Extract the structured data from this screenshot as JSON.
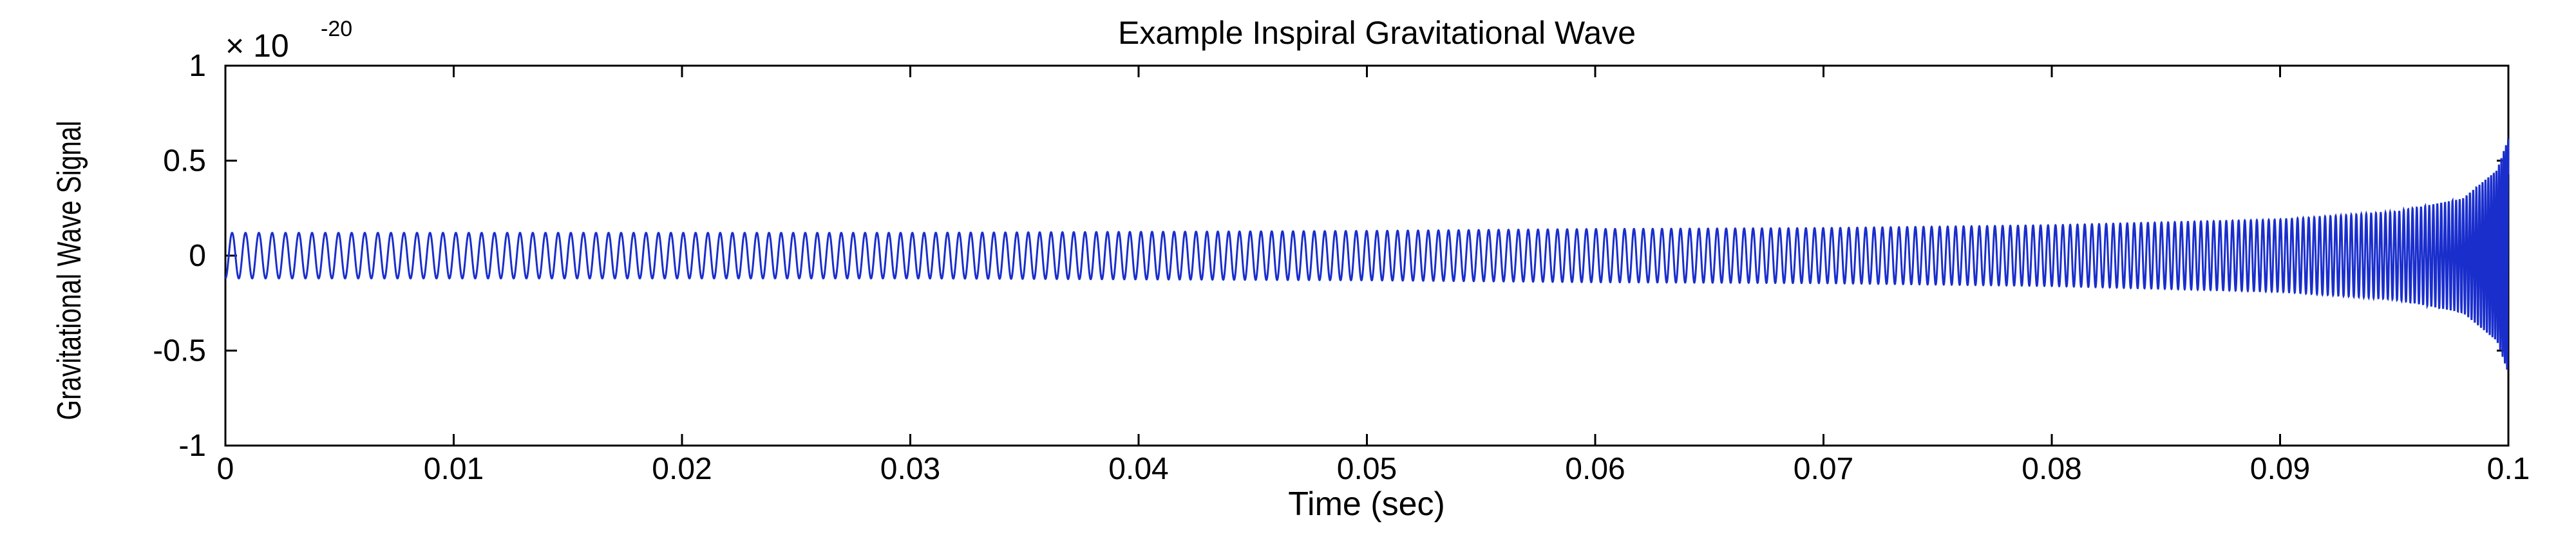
{
  "chart_data": {
    "type": "line",
    "title": "Example Inspiral Gravitational Wave",
    "xlabel": "Time (sec)",
    "ylabel": "Gravitational Wave Signal",
    "xlim": [
      0,
      0.1
    ],
    "ylim": [
      -1,
      1
    ],
    "y_multiplier": {
      "base": "× 10",
      "exponent": "-20"
    },
    "x_ticks": [
      0,
      0.01,
      0.02,
      0.03,
      0.04,
      0.05,
      0.06,
      0.07,
      0.08,
      0.09,
      0.1
    ],
    "x_tick_labels": [
      "0",
      "0.01",
      "0.02",
      "0.03",
      "0.04",
      "0.05",
      "0.06",
      "0.07",
      "0.08",
      "0.09",
      "0.1"
    ],
    "y_ticks": [
      -1,
      -0.5,
      0,
      0.5,
      1
    ],
    "y_tick_labels": [
      "-1",
      "-0.5",
      "0",
      "0.5",
      "1"
    ],
    "grid": false,
    "series": [
      {
        "color": "#1a2ecc",
        "description_model": "chirp: amplitude A(t)=0.12*(1 - t/0.1)^(-1/4) capped near 0.62, frequency rising (t_c - t)^(-3/8)",
        "x": [
          0,
          0.001,
          0.0041,
          0.0062,
          0.0087,
          0.01,
          0.02,
          0.03,
          0.04,
          0.05,
          0.06,
          0.07,
          0.08,
          0.09,
          0.095,
          0.098,
          0.0995,
          0.1
        ],
        "y_envelope": [
          0.12,
          0.12,
          0.12,
          0.12,
          0.12,
          0.12,
          0.12,
          0.12,
          0.125,
          0.13,
          0.14,
          0.145,
          0.16,
          0.19,
          0.23,
          0.3,
          0.45,
          0.62
        ]
      }
    ]
  }
}
